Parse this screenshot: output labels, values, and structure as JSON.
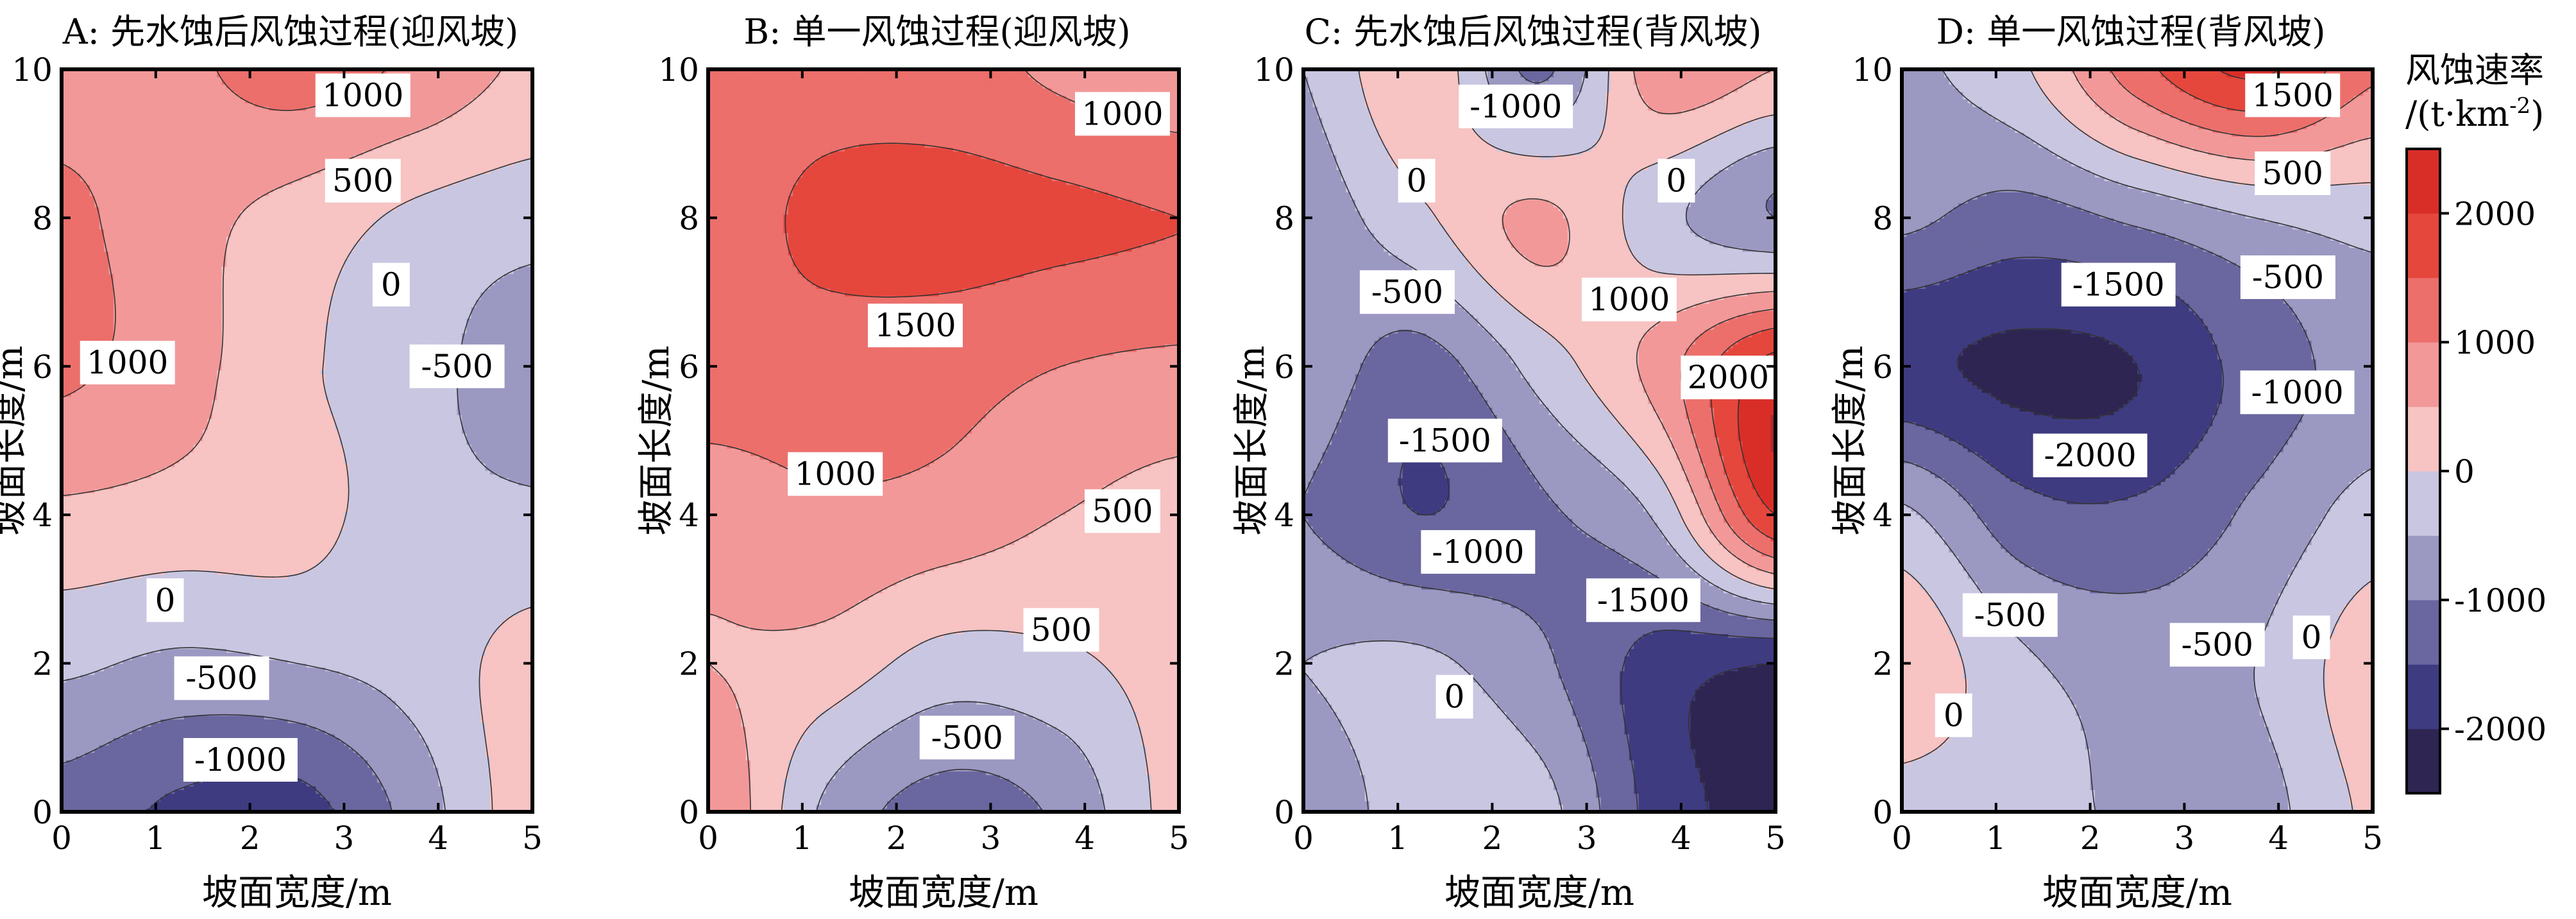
{
  "colors": {
    "levels": [
      "#2e2552",
      "#3f3b81",
      "#6a669f",
      "#9b98c2",
      "#c8c6e1",
      "#f7c3c3",
      "#f29898",
      "#ec6f6b",
      "#e5473d",
      "#d92e28",
      "#a72b2e"
    ],
    "frame": "#000000",
    "contour_line": "#333333"
  },
  "colorbar": {
    "title_line1": "风蚀速率",
    "title_line2": "/(t·km",
    "title_sup": "-2",
    "title_end": ")",
    "levels": [
      -2500,
      -2000,
      -1500,
      -1000,
      -500,
      0,
      500,
      1000,
      1500,
      2000,
      2500
    ],
    "ticks": [
      "-2000",
      "-1000",
      "0",
      "1000",
      "2000"
    ],
    "tick_values": [
      -2000,
      -1000,
      0,
      1000,
      2000
    ]
  },
  "chart_data": [
    {
      "type": "contour",
      "title": "A: 先水蚀后风蚀过程(迎风坡)",
      "xlabel": "坡面宽度/m",
      "ylabel": "坡面长度/m",
      "xlim": [
        0,
        5
      ],
      "ylim": [
        0,
        10
      ],
      "xticks": [
        "0",
        "1",
        "2",
        "3",
        "4",
        "5"
      ],
      "yticks": [
        "0",
        "2",
        "4",
        "6",
        "8",
        "10"
      ],
      "x": [
        0,
        1.25,
        2.5,
        3.75,
        5
      ],
      "y": [
        0,
        2,
        4,
        6,
        8,
        10
      ],
      "z": [
        [
          -1200,
          -1600,
          -1700,
          -800,
          300
        ],
        [
          -400,
          -600,
          -500,
          -300,
          200
        ],
        [
          400,
          300,
          200,
          -300,
          -400
        ],
        [
          1100,
          700,
          100,
          -300,
          -800
        ],
        [
          1100,
          700,
          300,
          -100,
          -300
        ],
        [
          800,
          900,
          1200,
          900,
          400
        ]
      ],
      "contour_labels": [
        {
          "text": "1000",
          "x": 3.2,
          "y": 9.65
        },
        {
          "text": "500",
          "x": 3.2,
          "y": 8.5
        },
        {
          "text": "0",
          "x": 3.5,
          "y": 7.1
        },
        {
          "text": "-500",
          "x": 4.2,
          "y": 6.0
        },
        {
          "text": "1000",
          "x": 0.7,
          "y": 6.05
        },
        {
          "text": "0",
          "x": 1.1,
          "y": 2.85
        },
        {
          "text": "-500",
          "x": 1.7,
          "y": 1.8
        },
        {
          "text": "-1000",
          "x": 1.9,
          "y": 0.7
        }
      ]
    },
    {
      "type": "contour",
      "title": "B: 单一风蚀过程(迎风坡)",
      "xlabel": "坡面宽度/m",
      "ylabel": "坡面长度/m",
      "xlim": [
        0,
        5
      ],
      "ylim": [
        0,
        10
      ],
      "xticks": [
        "0",
        "1",
        "2",
        "3",
        "4",
        "5"
      ],
      "yticks": [
        "0",
        "2",
        "4",
        "6",
        "8",
        "10"
      ],
      "x": [
        0,
        1.25,
        2.5,
        3.75,
        5
      ],
      "y": [
        0,
        2,
        4,
        6,
        8,
        10
      ],
      "z": [
        [
          1000,
          -600,
          -1200,
          -900,
          200
        ],
        [
          500,
          300,
          -200,
          -100,
          200
        ],
        [
          700,
          900,
          800,
          500,
          300
        ],
        [
          1300,
          1300,
          1200,
          1000,
          900
        ],
        [
          1300,
          1600,
          1700,
          1600,
          1500
        ],
        [
          1200,
          1300,
          1200,
          900,
          600
        ]
      ],
      "contour_labels": [
        {
          "text": "1000",
          "x": 4.4,
          "y": 9.4
        },
        {
          "text": "1500",
          "x": 2.2,
          "y": 6.55
        },
        {
          "text": "1000",
          "x": 1.35,
          "y": 4.55
        },
        {
          "text": "500",
          "x": 4.4,
          "y": 4.05
        },
        {
          "text": "500",
          "x": 3.75,
          "y": 2.45
        },
        {
          "text": "-500",
          "x": 2.75,
          "y": 1.0
        }
      ]
    },
    {
      "type": "contour",
      "title": "C: 先水蚀后风蚀过程(背风坡)",
      "xlabel": "坡面宽度/m",
      "ylabel": "坡面长度/m",
      "xlim": [
        0,
        5
      ],
      "ylim": [
        0,
        10
      ],
      "xticks": [
        "0",
        "1",
        "2",
        "3",
        "4",
        "5"
      ],
      "yticks": [
        "0",
        "2",
        "4",
        "6",
        "8",
        "10"
      ],
      "x": [
        0,
        1.25,
        2.5,
        3.75,
        5
      ],
      "y": [
        0,
        2,
        4,
        6,
        8,
        10
      ],
      "z": [
        [
          -900,
          -200,
          -300,
          -1700,
          -2200
        ],
        [
          -500,
          -400,
          -900,
          -1700,
          -2000
        ],
        [
          -1000,
          -1500,
          -1100,
          -400,
          2000
        ],
        [
          -700,
          -1200,
          -300,
          700,
          2200
        ],
        [
          -800,
          -100,
          600,
          -300,
          -1000
        ],
        [
          -500,
          400,
          -1100,
          800,
          500
        ]
      ],
      "contour_labels": [
        {
          "text": "-1000",
          "x": 2.25,
          "y": 9.5
        },
        {
          "text": "0",
          "x": 3.95,
          "y": 8.5
        },
        {
          "text": "0",
          "x": 1.2,
          "y": 8.5
        },
        {
          "text": "-500",
          "x": 1.1,
          "y": 7.0
        },
        {
          "text": "1000",
          "x": 3.45,
          "y": 6.9
        },
        {
          "text": "2000",
          "x": 4.5,
          "y": 5.85
        },
        {
          "text": "-1500",
          "x": 1.5,
          "y": 5.0
        },
        {
          "text": "-1000",
          "x": 1.85,
          "y": 3.5
        },
        {
          "text": "-1500",
          "x": 3.6,
          "y": 2.85
        },
        {
          "text": "0",
          "x": 1.6,
          "y": 1.55
        }
      ]
    },
    {
      "type": "contour",
      "title": "D: 单一风蚀过程(背风坡)",
      "xlabel": "坡面宽度/m",
      "ylabel": "坡面长度/m",
      "xlim": [
        0,
        5
      ],
      "ylim": [
        0,
        10
      ],
      "xticks": [
        "0",
        "1",
        "2",
        "3",
        "4",
        "5"
      ],
      "yticks": [
        "0",
        "2",
        "4",
        "6",
        "8",
        "10"
      ],
      "x": [
        0,
        1.25,
        2.5,
        3.75,
        5
      ],
      "y": [
        0,
        2,
        4,
        6,
        8,
        10
      ],
      "z": [
        [
          -200,
          -300,
          -600,
          -700,
          100
        ],
        [
          400,
          -400,
          -700,
          -500,
          300
        ],
        [
          -400,
          -1300,
          -1400,
          -900,
          -300
        ],
        [
          -1900,
          -2100,
          -2000,
          -1300,
          -800
        ],
        [
          -900,
          -1200,
          -900,
          -500,
          -300
        ],
        [
          -600,
          -100,
          1300,
          2100,
          1100
        ]
      ],
      "contour_labels": [
        {
          "text": "1500",
          "x": 4.15,
          "y": 9.65
        },
        {
          "text": "500",
          "x": 4.15,
          "y": 8.6
        },
        {
          "text": "-1500",
          "x": 2.3,
          "y": 7.1
        },
        {
          "text": "-500",
          "x": 4.1,
          "y": 7.2
        },
        {
          "text": "-1000",
          "x": 4.2,
          "y": 5.65
        },
        {
          "text": "-2000",
          "x": 2.0,
          "y": 4.8
        },
        {
          "text": "-500",
          "x": 1.15,
          "y": 2.65
        },
        {
          "text": "-500",
          "x": 3.35,
          "y": 2.25
        },
        {
          "text": "0",
          "x": 4.35,
          "y": 2.35
        },
        {
          "text": "0",
          "x": 0.55,
          "y": 1.3
        }
      ]
    }
  ]
}
